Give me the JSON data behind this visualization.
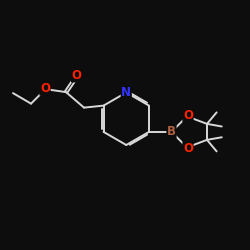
{
  "background_color": "#0d0d0d",
  "bond_color": "#d8d8d8",
  "atom_colors": {
    "N": "#3333ff",
    "O": "#ff2200",
    "B": "#b06040"
  },
  "bond_width": 1.4,
  "font_size_atoms": 8.5,
  "dbl_off": 0.055
}
